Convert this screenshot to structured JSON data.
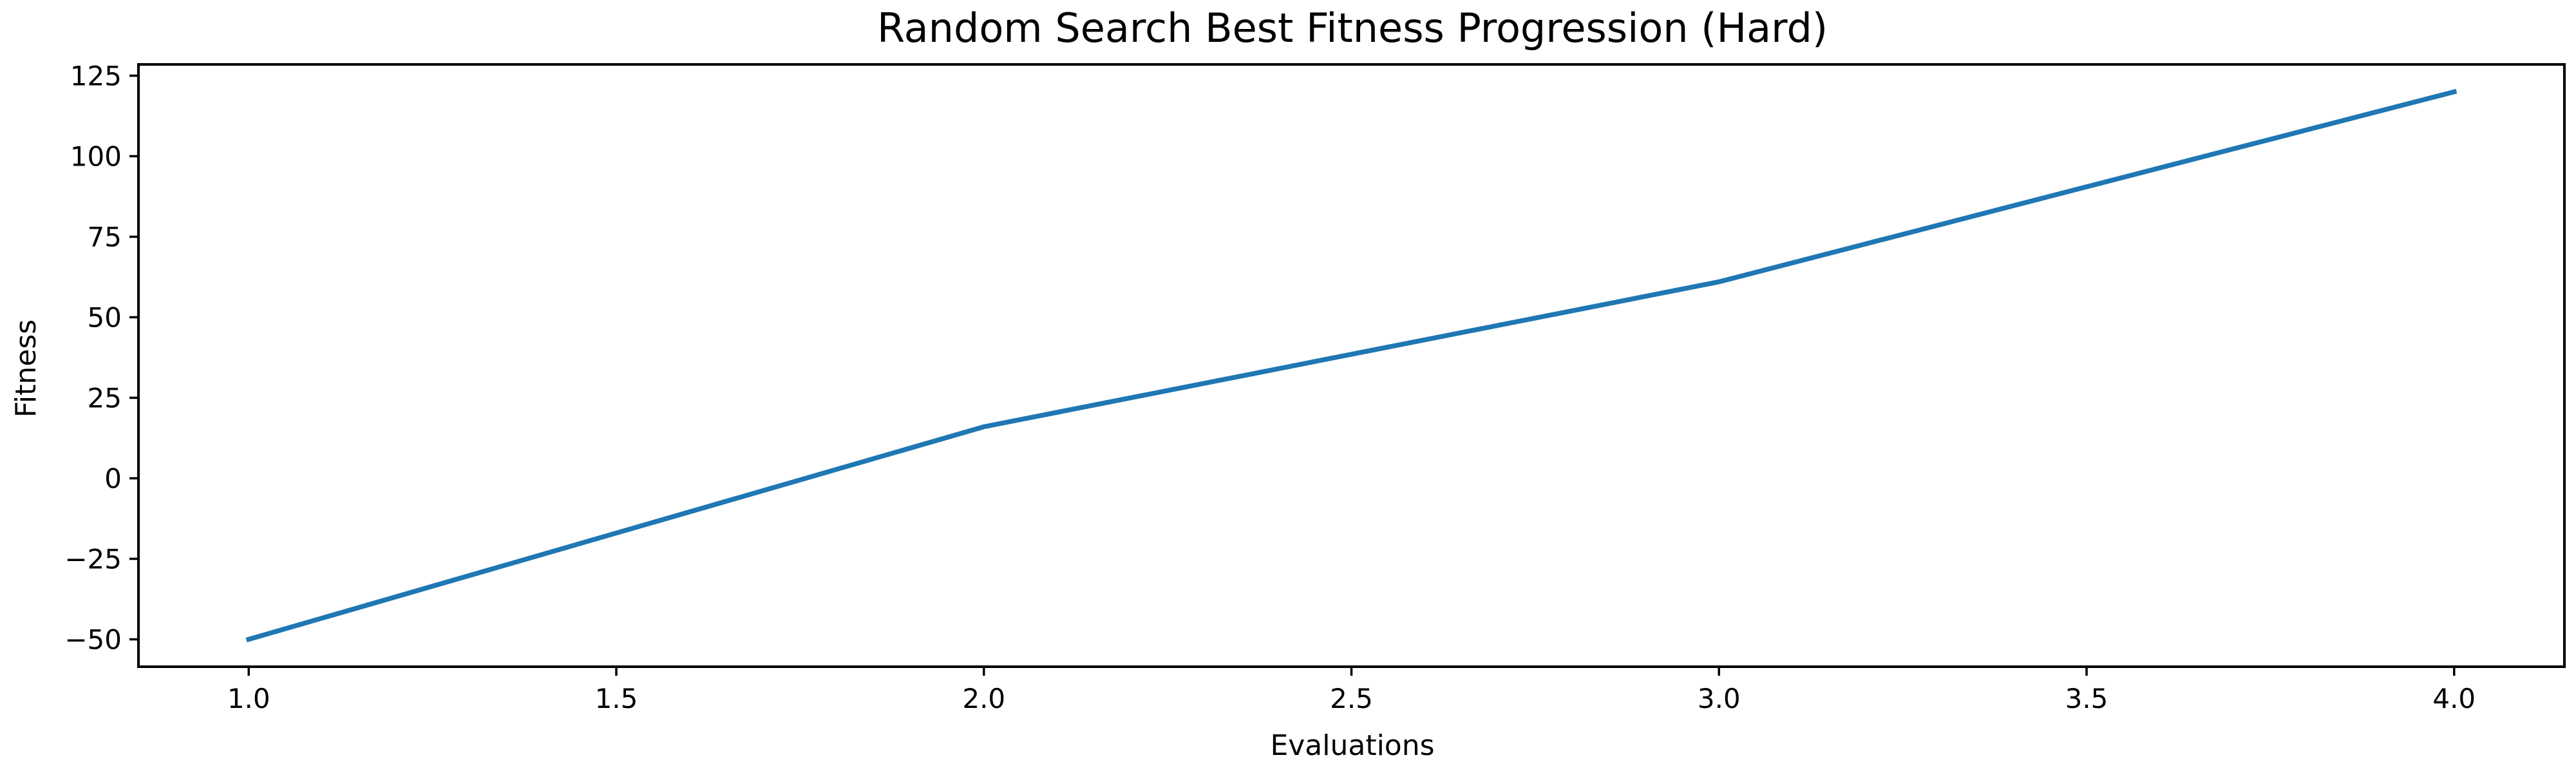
{
  "chart_data": {
    "type": "line",
    "title": "Random Search Best Fitness Progression (Hard)",
    "xlabel": "Evaluations",
    "ylabel": "Fitness",
    "x": [
      1.0,
      2.0,
      3.0,
      4.0
    ],
    "series": [
      {
        "values": [
          -50,
          16,
          61,
          120
        ],
        "color": "#1f77b4"
      }
    ],
    "xlim": [
      0.85,
      4.15
    ],
    "ylim": [
      -58.5,
      128.5
    ],
    "xticks": [
      1.0,
      1.5,
      2.0,
      2.5,
      3.0,
      3.5,
      4.0
    ],
    "xtick_labels": [
      "1.0",
      "1.5",
      "2.0",
      "2.5",
      "3.0",
      "3.5",
      "4.0"
    ],
    "yticks": [
      -50,
      -25,
      0,
      25,
      50,
      75,
      100,
      125
    ],
    "ytick_labels": [
      "−50",
      "−25",
      "0",
      "25",
      "50",
      "75",
      "100",
      "125"
    ],
    "grid": false,
    "legend": false
  }
}
